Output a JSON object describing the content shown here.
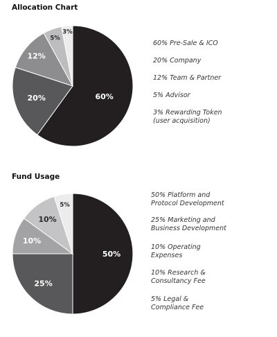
{
  "chart_data": [
    {
      "type": "pie",
      "title": "Allocation Chart",
      "slices": [
        {
          "label": "60%",
          "value": 60,
          "color": "#231f20",
          "text_color": "#ffffff"
        },
        {
          "label": "20%",
          "value": 20,
          "color": "#58585a",
          "text_color": "#ffffff"
        },
        {
          "label": "12%",
          "value": 12,
          "color": "#8d8d8f",
          "text_color": "#ffffff"
        },
        {
          "label": "5%",
          "value": 5,
          "color": "#bdbdbf",
          "text_color": "#2b2b2b"
        },
        {
          "label": "3%",
          "value": 3,
          "color": "#ececec",
          "text_color": "#2b2b2b"
        }
      ],
      "legend": [
        {
          "lines": [
            "60% Pre-Sale & ICO"
          ]
        },
        {
          "lines": [
            "20% Company"
          ]
        },
        {
          "lines": [
            "12% Team & Partner"
          ]
        },
        {
          "lines": [
            "5% Advisor"
          ]
        },
        {
          "lines": [
            "3% Rewarding Token",
            "(user acquisition)"
          ]
        }
      ]
    },
    {
      "type": "pie",
      "title": "Fund Usage",
      "slices": [
        {
          "label": "50%",
          "value": 50,
          "color": "#231f20",
          "text_color": "#ffffff"
        },
        {
          "label": "25%",
          "value": 25,
          "color": "#58585a",
          "text_color": "#ffffff"
        },
        {
          "label": "10%",
          "value": 10,
          "color": "#a3a3a5",
          "text_color": "#ffffff"
        },
        {
          "label": "10%",
          "value": 10,
          "color": "#c4c4c6",
          "text_color": "#2b2b2b"
        },
        {
          "label": "5%",
          "value": 5,
          "color": "#ececec",
          "text_color": "#2b2b2b"
        }
      ],
      "legend": [
        {
          "lines": [
            "50% Platform and",
            "Protocol Development"
          ]
        },
        {
          "lines": [
            "25% Marketing and",
            "Business Development"
          ]
        },
        {
          "lines": [
            "10% Operating",
            "Expenses"
          ]
        },
        {
          "lines": [
            "10% Research &",
            "Consultancy Fee"
          ]
        },
        {
          "lines": [
            "5% Legal &",
            "Compliance Fee"
          ]
        }
      ]
    }
  ]
}
